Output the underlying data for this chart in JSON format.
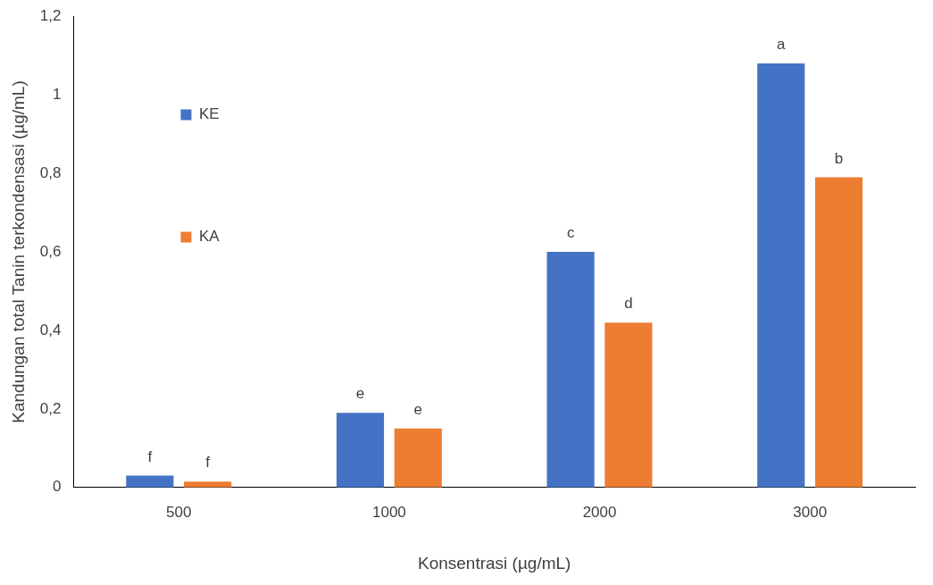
{
  "chart_data": {
    "type": "bar",
    "xlabel": "Konsentrasi (µg/mL)",
    "ylabel": "Kandungan total Tanin terkondensasi (µg/mL)",
    "categories": [
      "500",
      "1000",
      "2000",
      "3000"
    ],
    "series": [
      {
        "name": "KE",
        "color": "#4472c4",
        "values": [
          0.03,
          0.19,
          0.6,
          1.08
        ],
        "value_labels": [
          "f",
          "e",
          "c",
          "a"
        ]
      },
      {
        "name": "KA",
        "color": "#ed7d31",
        "values": [
          0.015,
          0.15,
          0.42,
          0.79
        ],
        "value_labels": [
          "f",
          "e",
          "d",
          "b"
        ]
      }
    ],
    "ylim": [
      0,
      1.2
    ],
    "yticks": [
      0,
      {
        "value": 0.2,
        "label": "0,2"
      },
      {
        "value": 0.4,
        "label": "0,4"
      },
      {
        "value": 0.6,
        "label": "0,6"
      },
      {
        "value": 0.8,
        "label": "0,8"
      },
      1,
      {
        "value": 1.2,
        "label": "1,2"
      }
    ],
    "grid": false,
    "legend": "top left"
  }
}
